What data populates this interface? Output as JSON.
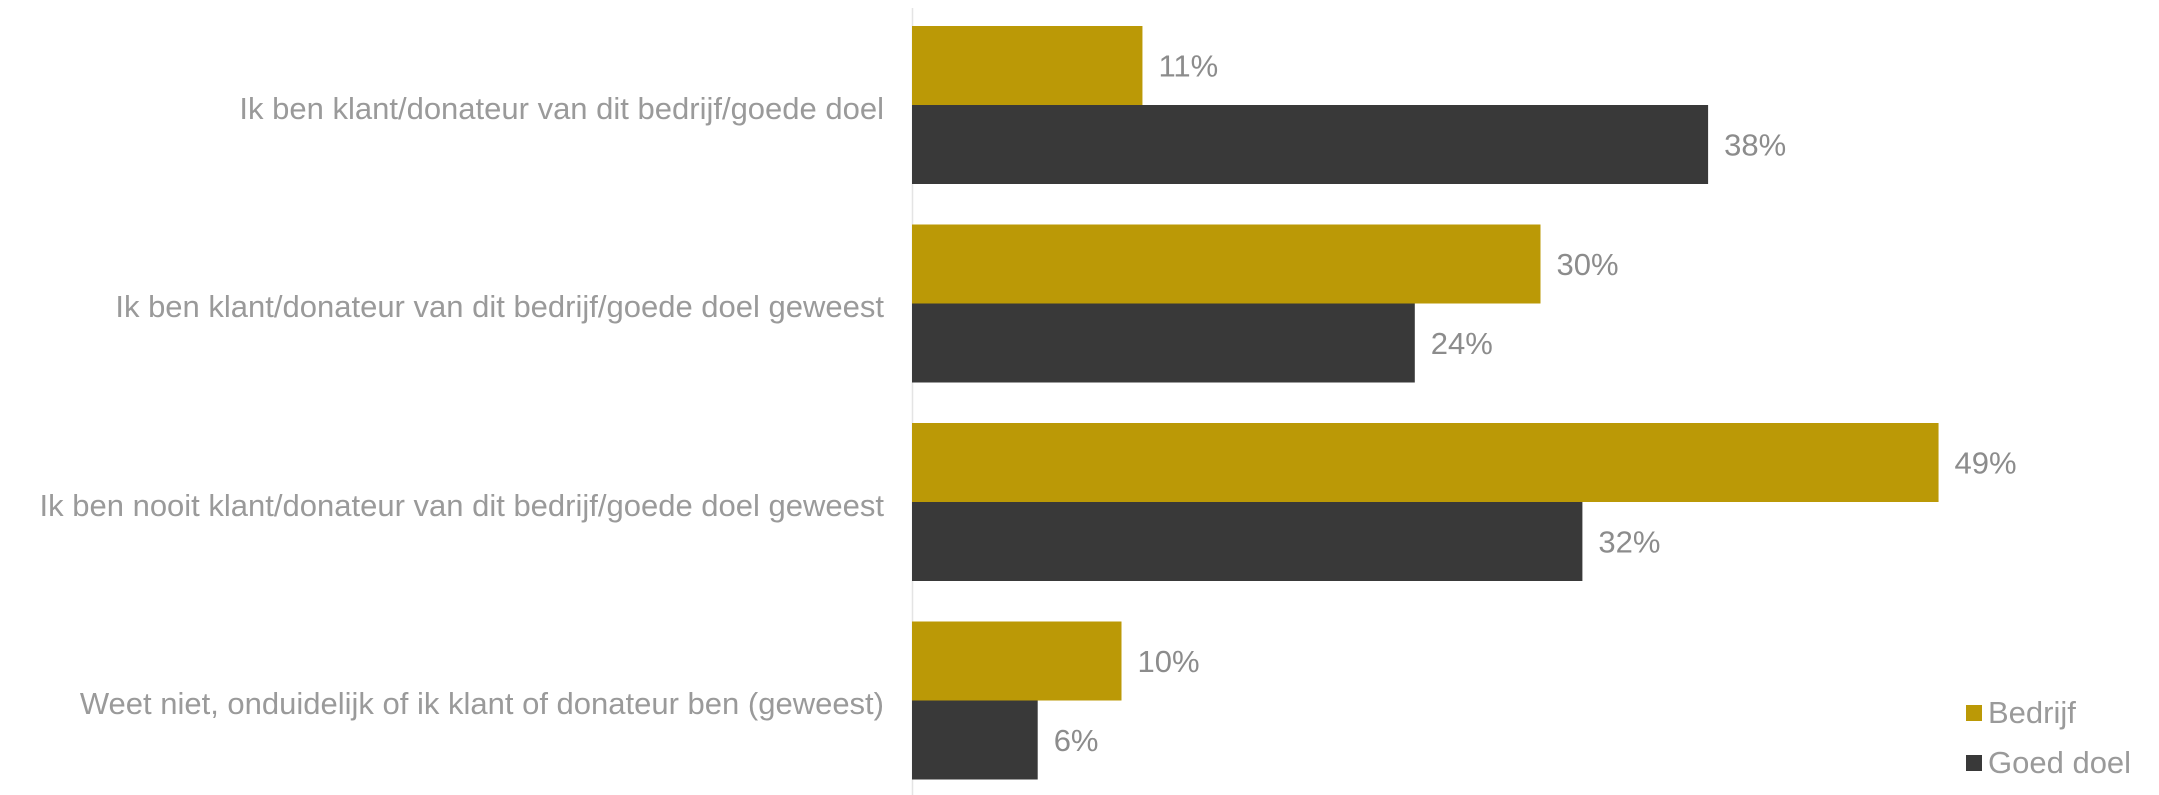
{
  "chart_data": {
    "type": "bar",
    "orientation": "horizontal",
    "categories": [
      "Ik ben klant/donateur van dit bedrijf/goede doel",
      "Ik ben klant/donateur van dit bedrijf/goede doel geweest",
      "Ik ben nooit klant/donateur van dit bedrijf/goede doel geweest",
      "Weet niet, onduidelijk of ik klant of donateur ben (geweest)"
    ],
    "series": [
      {
        "name": "Bedrijf",
        "values": [
          11,
          30,
          49,
          10
        ],
        "labels": [
          "11%",
          "30%",
          "49%",
          "10%"
        ],
        "color": "#bb9906"
      },
      {
        "name": "Goed doel",
        "values": [
          38,
          24,
          32,
          6
        ],
        "labels": [
          "38%",
          "24%",
          "32%",
          "6%"
        ],
        "color": "#393939"
      }
    ],
    "xlim": [
      0,
      50
    ],
    "unit": "%",
    "grid": false,
    "legend": "bottom-right"
  }
}
